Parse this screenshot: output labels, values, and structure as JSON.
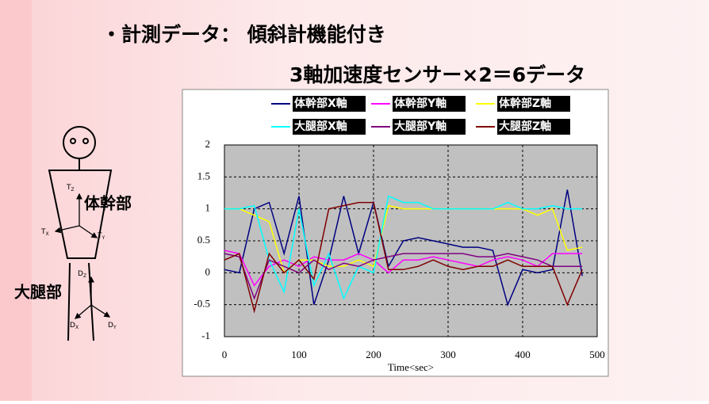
{
  "slide": {
    "title": "・計測データ： 傾斜計機能付き",
    "subtitle": "3軸加速度センサー×2＝6データ",
    "figure": {
      "trunk": "体幹部",
      "thigh": "大腿部",
      "axes": [
        {
          "base": "T",
          "sub": "Z"
        },
        {
          "base": "T",
          "sub": "X"
        },
        {
          "base": "T",
          "sub": "Y"
        },
        {
          "base": "D",
          "sub": "Z"
        },
        {
          "base": "D",
          "sub": "X"
        },
        {
          "base": "D",
          "sub": "Y"
        }
      ]
    }
  },
  "chart_data": {
    "type": "line",
    "xlabel": "Time<sec>",
    "x": [
      0,
      20,
      40,
      60,
      80,
      100,
      120,
      140,
      160,
      180,
      200,
      220,
      240,
      260,
      280,
      300,
      320,
      340,
      360,
      380,
      400,
      420,
      440,
      460,
      480
    ],
    "series": [
      {
        "name": "体幹部X軸",
        "color": "#000080",
        "values": [
          0.05,
          0.0,
          1.0,
          1.1,
          0.3,
          1.2,
          -0.5,
          0.2,
          1.2,
          0.3,
          1.1,
          0.1,
          0.5,
          0.55,
          0.5,
          0.45,
          0.4,
          0.4,
          0.35,
          -0.5,
          0.05,
          0.0,
          0.05,
          1.3,
          -0.05
        ]
      },
      {
        "name": "体幹部Y軸",
        "color": "#ff00ff",
        "values": [
          0.35,
          0.3,
          -0.2,
          0.1,
          0.2,
          0.1,
          0.25,
          0.2,
          0.2,
          0.3,
          0.2,
          0.0,
          0.2,
          0.2,
          0.25,
          0.2,
          0.15,
          0.1,
          0.2,
          0.25,
          0.2,
          0.1,
          0.3,
          0.3,
          0.3
        ]
      },
      {
        "name": "体幹部Z軸",
        "color": "#ffff00",
        "values": [
          1.0,
          1.0,
          0.9,
          0.8,
          0.0,
          0.2,
          0.2,
          0.1,
          0.1,
          0.2,
          0.1,
          1.05,
          1.0,
          1.0,
          1.0,
          1.0,
          1.0,
          1.0,
          1.0,
          1.0,
          1.0,
          0.9,
          1.0,
          0.35,
          0.4
        ]
      },
      {
        "name": "大腿部X軸",
        "color": "#00ffff",
        "values": [
          1.0,
          1.0,
          1.05,
          0.2,
          -0.3,
          1.0,
          -0.2,
          0.3,
          -0.4,
          0.1,
          0.0,
          1.2,
          1.1,
          1.1,
          1.0,
          1.0,
          1.0,
          1.0,
          1.0,
          1.1,
          1.0,
          1.0,
          1.05,
          1.0,
          1.0
        ]
      },
      {
        "name": "大腿部Y軸",
        "color": "#800080",
        "values": [
          0.3,
          0.25,
          -0.4,
          0.2,
          0.1,
          0.0,
          0.2,
          0.05,
          0.15,
          0.1,
          0.2,
          0.25,
          0.3,
          0.3,
          0.3,
          0.3,
          0.3,
          0.25,
          0.25,
          0.3,
          0.25,
          0.2,
          0.1,
          0.1,
          0.1
        ]
      },
      {
        "name": "大腿部Z軸",
        "color": "#800000",
        "values": [
          0.2,
          0.3,
          -0.6,
          0.3,
          0.0,
          0.2,
          -0.1,
          1.0,
          1.05,
          1.1,
          1.1,
          0.05,
          0.05,
          0.1,
          0.2,
          0.1,
          0.05,
          0.1,
          0.1,
          0.2,
          0.1,
          0.1,
          0.1,
          -0.5,
          0.05
        ]
      }
    ],
    "xlim": [
      0,
      500
    ],
    "xticks": [
      0,
      100,
      200,
      300,
      400,
      500
    ],
    "ylim": [
      -1,
      2
    ],
    "yticks": [
      -1,
      -0.5,
      0,
      0.5,
      1,
      1.5,
      2
    ],
    "grid": true
  }
}
